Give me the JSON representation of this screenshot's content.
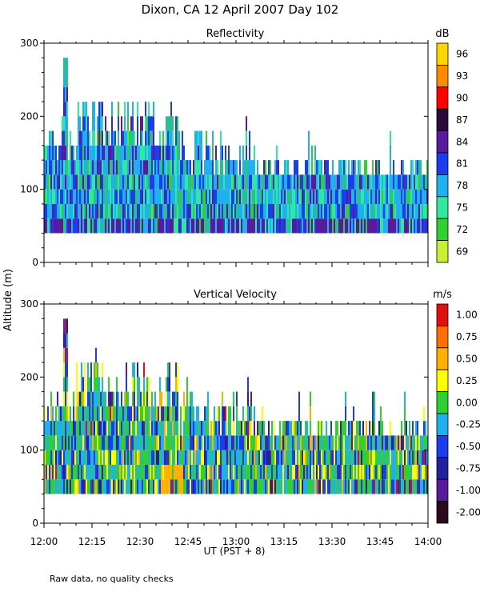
{
  "chart_data": [
    {
      "type": "heatmap",
      "title": "Reflectivity",
      "ylabel": "Altitude (m)",
      "ylim": [
        0,
        300
      ],
      "yticks": [
        0,
        100,
        200,
        300
      ],
      "xlim_hours": [
        12,
        14
      ],
      "colorbar_unit": "dB",
      "colorbar_labels": [
        "96",
        "93",
        "90",
        "87",
        "84",
        "81",
        "78",
        "75",
        "72",
        "69"
      ],
      "colorbar_colors": [
        "#ffd700",
        "#ff8c00",
        "#ff0000",
        "#2a0a3c",
        "#5a1a9c",
        "#1c3cf0",
        "#20b0f0",
        "#30e8a0",
        "#30d030",
        "#c8f030"
      ],
      "data_altitude_range": [
        40,
        280
      ],
      "dominant_values": "78-84 dB, echo tops mostly 120-200 m, max ~280 m near 12:07"
    },
    {
      "type": "heatmap",
      "title": "Vertical Velocity",
      "ylabel": "Altitude (m)",
      "ylim": [
        0,
        300
      ],
      "yticks": [
        0,
        100,
        200,
        300
      ],
      "xlim_hours": [
        12,
        14
      ],
      "colorbar_unit": "m/s",
      "colorbar_labels": [
        "1.00",
        "0.75",
        "0.50",
        "0.25",
        "0.00",
        "-0.25",
        "-0.50",
        "-0.75",
        "-1.00",
        "-2.00"
      ],
      "colorbar_colors": [
        "#e01010",
        "#ff7000",
        "#ffb000",
        "#ffff00",
        "#30d030",
        "#20b0f0",
        "#1c3cf0",
        "#2020a0",
        "#5a1a9c",
        "#2a0a1c"
      ],
      "data_altitude_range": [
        40,
        280
      ],
      "dominant_values": "-0.50 to 0.50 m/s, updrafts 0.25-0.75 near 12:35-12:40"
    }
  ],
  "figure": {
    "title": "Dixon, CA 12 April 2007  Day 102",
    "ylabel": "Altitude (m)",
    "xlabel": "UT  (PST + 8)",
    "xtick_labels": [
      "12:00",
      "12:15",
      "12:30",
      "12:45",
      "13:00",
      "13:15",
      "13:30",
      "13:45",
      "14:00"
    ],
    "footnote": "Raw data, no quality checks"
  }
}
